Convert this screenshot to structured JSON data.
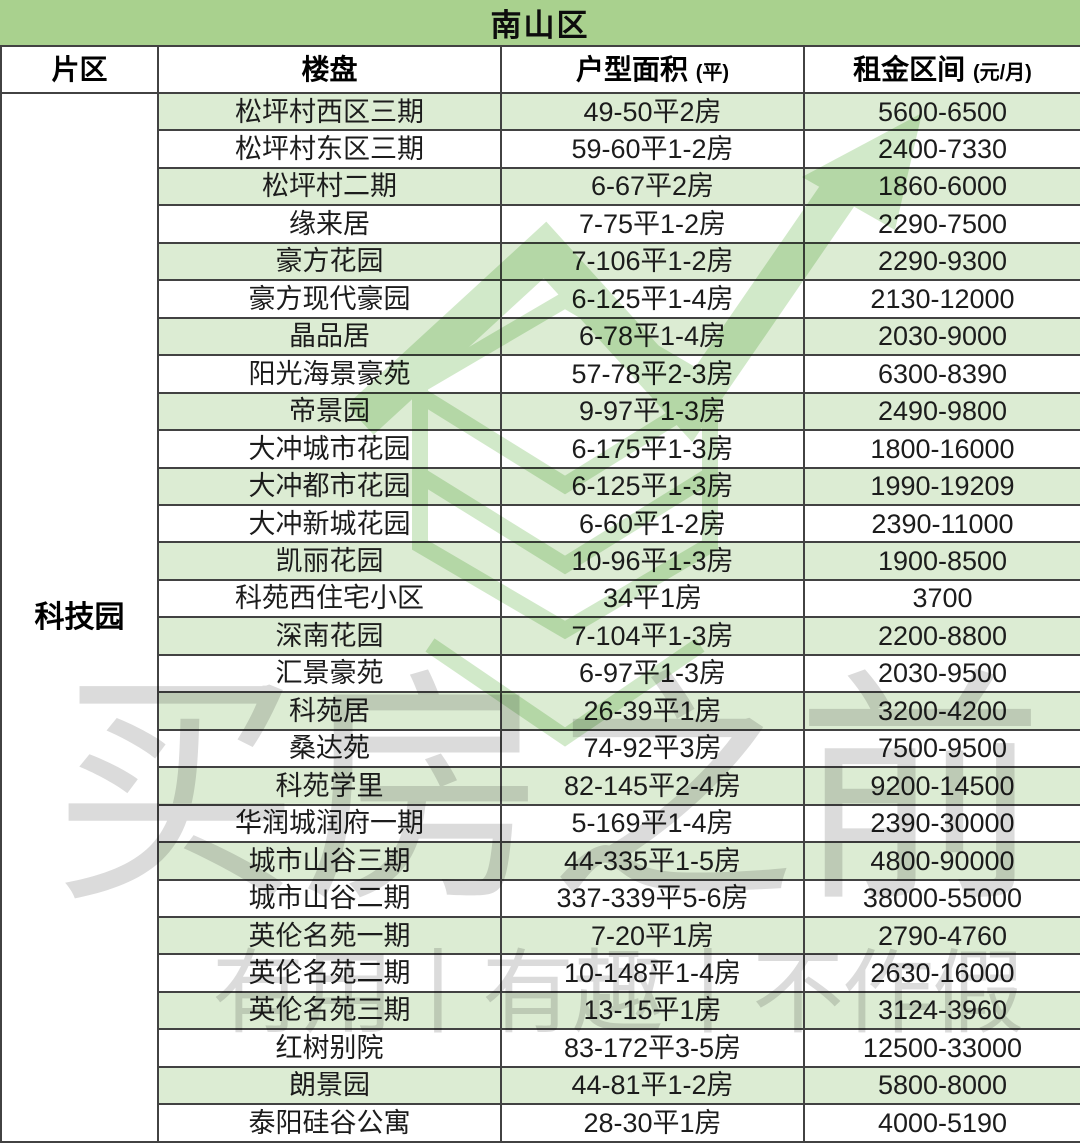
{
  "table": {
    "title": "南山区",
    "header": {
      "region": "片区",
      "estate": "楼盘",
      "area_label": "户型面积",
      "area_unit": "(平)",
      "rent_label": "租金区间",
      "rent_unit": "(元/月)"
    },
    "district": "科技园",
    "rows": [
      {
        "name": "松坪村西区三期",
        "area": "49-50平2房",
        "rent": "5600-6500"
      },
      {
        "name": "松坪村东区三期",
        "area": "59-60平1-2房",
        "rent": "2400-7330"
      },
      {
        "name": "松坪村二期",
        "area": "6-67平2房",
        "rent": "1860-6000"
      },
      {
        "name": "缘来居",
        "area": "7-75平1-2房",
        "rent": "2290-7500"
      },
      {
        "name": "豪方花园",
        "area": "7-106平1-2房",
        "rent": "2290-9300"
      },
      {
        "name": "豪方现代豪园",
        "area": "6-125平1-4房",
        "rent": "2130-12000"
      },
      {
        "name": "晶品居",
        "area": "6-78平1-4房",
        "rent": "2030-9000"
      },
      {
        "name": "阳光海景豪苑",
        "area": "57-78平2-3房",
        "rent": "6300-8390"
      },
      {
        "name": "帝景园",
        "area": "9-97平1-3房",
        "rent": "2490-9800"
      },
      {
        "name": "大冲城市花园",
        "area": "6-175平1-3房",
        "rent": "1800-16000"
      },
      {
        "name": "大冲都市花园",
        "area": "6-125平1-3房",
        "rent": "1990-19209"
      },
      {
        "name": "大冲新城花园",
        "area": "6-60平1-2房",
        "rent": "2390-11000"
      },
      {
        "name": "凯丽花园",
        "area": "10-96平1-3房",
        "rent": "1900-8500"
      },
      {
        "name": "科苑西住宅小区",
        "area": "34平1房",
        "rent": "3700"
      },
      {
        "name": "深南花园",
        "area": "7-104平1-3房",
        "rent": "2200-8800"
      },
      {
        "name": "汇景豪苑",
        "area": "6-97平1-3房",
        "rent": "2030-9500"
      },
      {
        "name": "科苑居",
        "area": "26-39平1房",
        "rent": "3200-4200"
      },
      {
        "name": "桑达苑",
        "area": "74-92平3房",
        "rent": "7500-9500"
      },
      {
        "name": "科苑学里",
        "area": "82-145平2-4房",
        "rent": "9200-14500"
      },
      {
        "name": "华润城润府一期",
        "area": "5-169平1-4房",
        "rent": "2390-30000"
      },
      {
        "name": "城市山谷三期",
        "area": "44-335平1-5房",
        "rent": "4800-90000"
      },
      {
        "name": "城市山谷二期",
        "area": "337-339平5-6房",
        "rent": "38000-55000"
      },
      {
        "name": "英伦名苑一期",
        "area": "7-20平1房",
        "rent": "2790-4760"
      },
      {
        "name": "英伦名苑二期",
        "area": "10-148平1-4房",
        "rent": "2630-16000"
      },
      {
        "name": "英伦名苑三期",
        "area": "13-15平1房",
        "rent": "3124-3960"
      },
      {
        "name": "红树别院",
        "area": "83-172平3-5房",
        "rent": "12500-33000"
      },
      {
        "name": "朗景园",
        "area": "44-81平1-2房",
        "rent": "5800-8000"
      },
      {
        "name": "泰阳硅谷公寓",
        "area": "28-30平1房",
        "rent": "4000-5190"
      }
    ]
  },
  "watermark": {
    "brand_chars": [
      "买",
      "房",
      "之",
      "前"
    ],
    "brand": "买房之前",
    "slogan": "有用丨有趣丨不作假"
  },
  "colors": {
    "title_bg": "#a9d18e",
    "row_green": "#dcecd3",
    "row_white": "#ffffff",
    "border": "#424242",
    "logo_green": "#a3d494",
    "watermark_gray": "#8d8d8d"
  }
}
